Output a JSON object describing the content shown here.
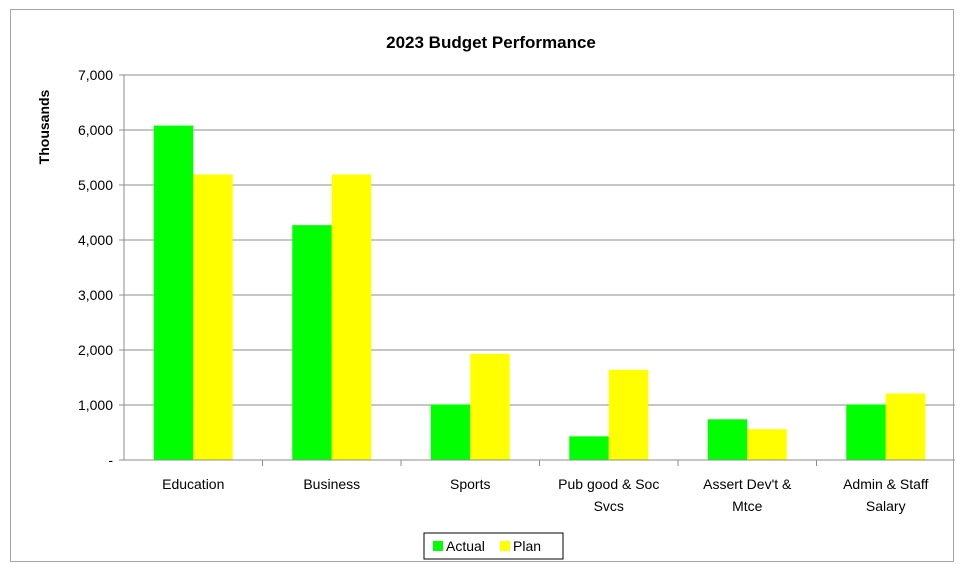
{
  "chart_data": {
    "type": "bar",
    "title": "2023 Budget Performance",
    "xlabel": "",
    "ylabel": "Thousands",
    "categories": [
      [
        "Education"
      ],
      [
        "Business"
      ],
      [
        "Sports"
      ],
      [
        "Pub good & Soc",
        "Svcs"
      ],
      [
        "Assert Dev't &",
        "Mtce"
      ],
      [
        "Admin & Staff",
        "Salary"
      ]
    ],
    "series": [
      {
        "name": "Actual",
        "color": "#00ff00",
        "values": [
          6080,
          4270,
          1010,
          430,
          740,
          1010
        ]
      },
      {
        "name": "Plan",
        "color": "#ffff00",
        "values": [
          5190,
          5190,
          1930,
          1640,
          560,
          1210
        ]
      }
    ],
    "ylim": [
      0,
      7000
    ],
    "yticks": [
      0,
      1000,
      2000,
      3000,
      4000,
      5000,
      6000,
      7000
    ],
    "ytick_labels": [
      "-",
      "1,000",
      "2,000",
      "3,000",
      "4,000",
      "5,000",
      "6,000",
      "7,000"
    ],
    "grid": true,
    "legend_position": "bottom-center"
  }
}
